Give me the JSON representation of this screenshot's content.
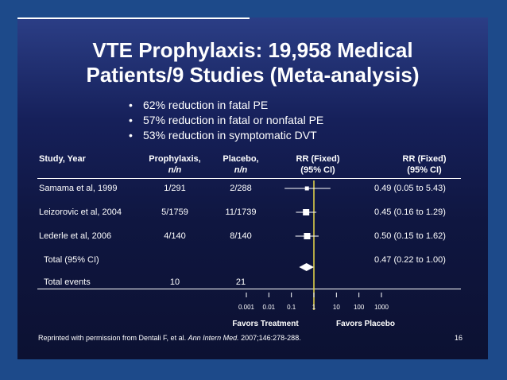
{
  "slide": {
    "title_line1": "VTE Prophylaxis: 19,958 Medical",
    "title_line2": "Patients/9 Studies (Meta-analysis)",
    "bullets": [
      "62% reduction in fatal PE",
      "57% reduction in fatal or nonfatal PE",
      "53% reduction in symptomatic DVT"
    ],
    "footer_prefix": "Reprinted with permission from Dentali F, et al. ",
    "footer_journal": "Ann Intern Med.",
    "footer_suffix": " 2007;146:278-288.",
    "page_number": "16"
  },
  "table": {
    "headers": {
      "study": "Study, Year",
      "prophylaxis": "Prophylaxis,",
      "prophylaxis_sub": "n/n",
      "placebo": "Placebo,",
      "placebo_sub": "n/n",
      "rr_plot": "RR (Fixed)",
      "rr_plot_sub": "(95% CI)",
      "rr_text": "RR (Fixed)",
      "rr_text_sub": "(95% CI)"
    },
    "total_label": "Total (95% CI)",
    "total_rr": "0.47 (0.22 to 1.00)",
    "events_label": "Total events",
    "events_prophylaxis": "10",
    "events_placebo": "21"
  },
  "chart_data": {
    "type": "forest",
    "x_scale": "log",
    "xlim": [
      0.001,
      1000
    ],
    "x_ticks": [
      "0.001",
      "0.01",
      "0.1",
      "1",
      "10",
      "100",
      "1000"
    ],
    "x_tick_values": [
      0.001,
      0.01,
      0.1,
      1,
      10,
      100,
      1000
    ],
    "favors_left": "Favors Treatment",
    "favors_right": "Favors Placebo",
    "reference_line": 1,
    "reference_color": "#e8d84a",
    "studies": [
      {
        "name": "Samama et al, 1999",
        "prophylaxis": "1/291",
        "placebo": "2/288",
        "rr": 0.49,
        "ci_low": 0.05,
        "ci_high": 5.43,
        "rr_text": "0.49 (0.05 to 5.43)"
      },
      {
        "name": "Leizorovic et al, 2004",
        "prophylaxis": "5/1759",
        "placebo": "11/1739",
        "rr": 0.45,
        "ci_low": 0.16,
        "ci_high": 1.29,
        "rr_text": "0.45 (0.16 to 1.29)"
      },
      {
        "name": "Lederle et al, 2006",
        "prophylaxis": "4/140",
        "placebo": "8/140",
        "rr": 0.5,
        "ci_low": 0.15,
        "ci_high": 1.62,
        "rr_text": "0.50 (0.15 to 1.62)"
      }
    ],
    "total": {
      "rr": 0.47,
      "ci_low": 0.22,
      "ci_high": 1.0
    }
  }
}
